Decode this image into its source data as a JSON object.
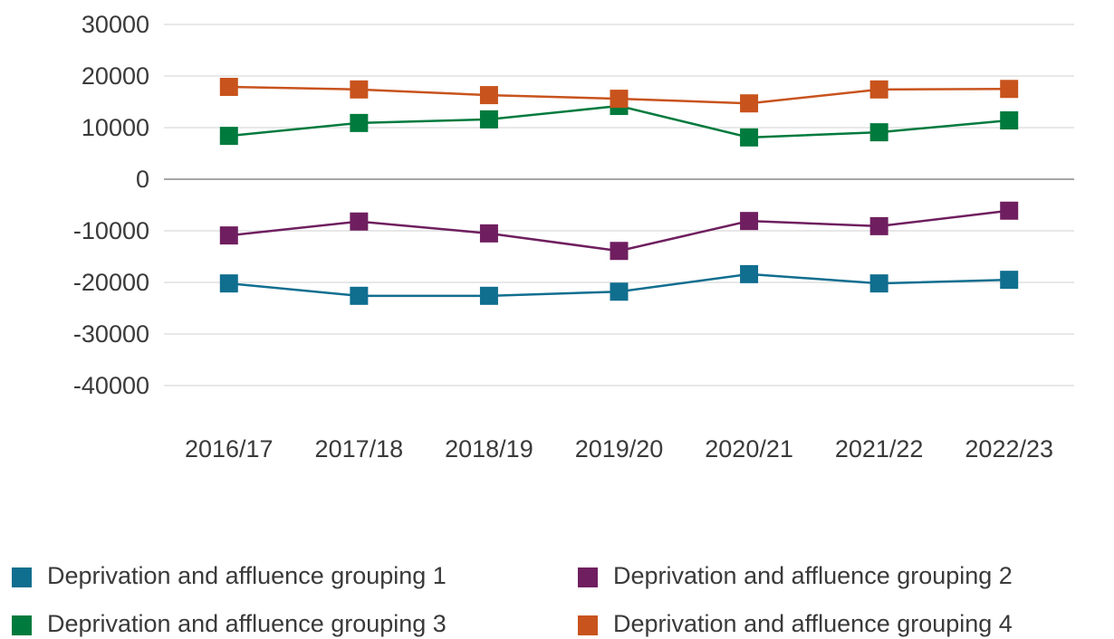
{
  "chart_data": {
    "type": "line",
    "categories": [
      "2016/17",
      "2017/18",
      "2018/19",
      "2019/20",
      "2020/21",
      "2021/22",
      "2022/23"
    ],
    "series": [
      {
        "name": "Deprivation and affluence grouping 1",
        "color": "#106e8f",
        "values": [
          -20200,
          -22600,
          -22600,
          -21800,
          -18400,
          -20200,
          -19500
        ]
      },
      {
        "name": "Deprivation and affluence grouping 2",
        "color": "#6f1f5f",
        "values": [
          -10900,
          -8200,
          -10500,
          -13900,
          -8100,
          -9100,
          -6100
        ]
      },
      {
        "name": "Deprivation and affluence grouping 3",
        "color": "#007a3d",
        "values": [
          8400,
          10900,
          11600,
          14200,
          8100,
          9100,
          11400
        ]
      },
      {
        "name": "Deprivation and affluence grouping 4",
        "color": "#c8531d",
        "values": [
          17900,
          17400,
          16300,
          15600,
          14700,
          17400,
          17500
        ]
      }
    ],
    "ylim": [
      -40000,
      30000
    ],
    "yticks": [
      -40000,
      -30000,
      -20000,
      -10000,
      0,
      10000,
      20000,
      30000
    ],
    "grid": true,
    "legend": "bottom"
  }
}
